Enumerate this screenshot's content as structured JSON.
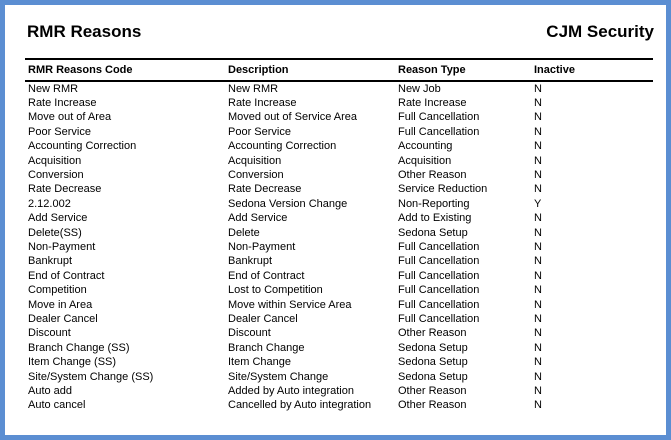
{
  "report": {
    "title": "RMR Reasons",
    "company": "CJM Security"
  },
  "table": {
    "columns": [
      "RMR Reasons Code",
      "Description",
      "Reason Type",
      "Inactive"
    ],
    "rows": [
      [
        "New RMR",
        "New RMR",
        "New Job",
        "N"
      ],
      [
        "Rate Increase",
        "Rate Increase",
        "Rate Increase",
        "N"
      ],
      [
        "Move out of Area",
        "Moved out of Service Area",
        "Full Cancellation",
        "N"
      ],
      [
        "Poor Service",
        "Poor Service",
        "Full Cancellation",
        "N"
      ],
      [
        "Accounting Correction",
        "Accounting Correction",
        "Accounting",
        "N"
      ],
      [
        "Acquisition",
        "Acquisition",
        "Acquisition",
        "N"
      ],
      [
        "Conversion",
        "Conversion",
        "Other Reason",
        "N"
      ],
      [
        "Rate Decrease",
        "Rate Decrease",
        "Service Reduction",
        "N"
      ],
      [
        "2.12.002",
        "Sedona Version Change",
        "Non-Reporting",
        "Y"
      ],
      [
        "Add Service",
        "Add Service",
        "Add to Existing",
        "N"
      ],
      [
        "Delete(SS)",
        "Delete",
        "Sedona Setup",
        "N"
      ],
      [
        "Non-Payment",
        "Non-Payment",
        "Full Cancellation",
        "N"
      ],
      [
        "Bankrupt",
        "Bankrupt",
        "Full Cancellation",
        "N"
      ],
      [
        "End of Contract",
        "End of Contract",
        "Full Cancellation",
        "N"
      ],
      [
        "Competition",
        "Lost to Competition",
        "Full Cancellation",
        "N"
      ],
      [
        "Move in Area",
        "Move within Service Area",
        "Full Cancellation",
        "N"
      ],
      [
        "Dealer Cancel",
        "Dealer Cancel",
        "Full Cancellation",
        "N"
      ],
      [
        "Discount",
        "Discount",
        "Other Reason",
        "N"
      ],
      [
        "Branch Change (SS)",
        "Branch Change",
        "Sedona Setup",
        "N"
      ],
      [
        "Item Change (SS)",
        "Item Change",
        "Sedona Setup",
        "N"
      ],
      [
        "Site/System Change (SS)",
        "Site/System Change",
        "Sedona Setup",
        "N"
      ],
      [
        "Auto add",
        "Added by Auto integration",
        "Other Reason",
        "N"
      ],
      [
        "Auto cancel",
        "Cancelled by Auto integration",
        "Other Reason",
        "N"
      ]
    ]
  },
  "colors": {
    "frame_blue": "#5b8ed2",
    "background": "#ffffff",
    "text": "#000000",
    "rule": "#000000"
  }
}
